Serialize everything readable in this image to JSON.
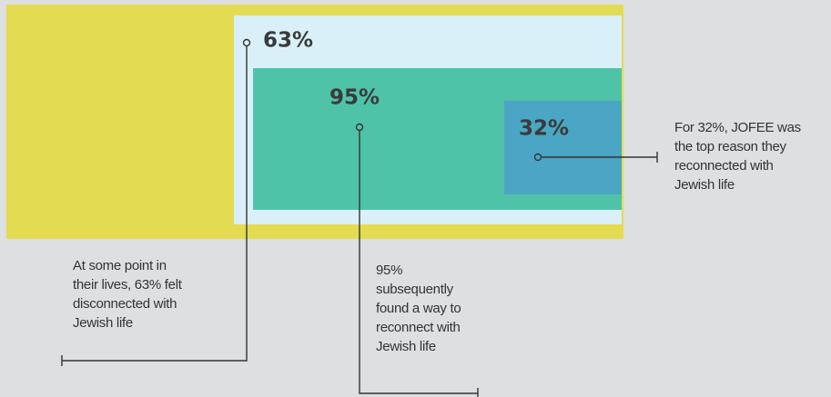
{
  "boxes": [
    {
      "label": "63%",
      "note": [
        "At some point in",
        "their lives, 63% felt",
        "disconnected with",
        "Jewish life"
      ]
    },
    {
      "label": "95%",
      "note": [
        "95%",
        "subsequently",
        "found a way to",
        "reconnect with",
        "Jewish life"
      ]
    },
    {
      "label": "32%",
      "note": [
        "For 32%, JOFEE was",
        "the top reason they",
        "reconnected with",
        "Jewish life"
      ]
    }
  ]
}
